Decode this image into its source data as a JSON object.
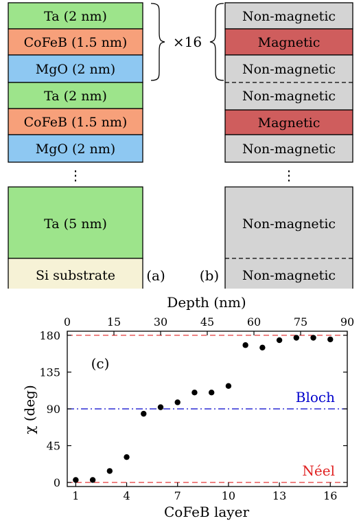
{
  "stack_a": {
    "layers_top": [
      "Ta (2 nm)",
      "CoFeB (1.5 nm)",
      "MgO (2 nm)",
      "Ta (2 nm)",
      "CoFeB (1.5 nm)",
      "MgO (2 nm)"
    ],
    "bottom_ta": "Ta (5 nm)",
    "substrate": "Si substrate",
    "panel_label": "(a)",
    "colors": {
      "ta": "#9de48b",
      "cofeb": "#f7a07a",
      "mgo": "#8ec8f2",
      "substrate": "#f6f2d6"
    }
  },
  "repeat_label": "×16",
  "ellipsis": "⋮",
  "stack_b": {
    "layers_top": [
      "Non-magnetic",
      "Magnetic",
      "Non-magnetic",
      "Non-magnetic",
      "Magnetic",
      "Non-magnetic"
    ],
    "bottom_big": "Non-magnetic",
    "bottom_small": "Non-magnetic",
    "panel_label": "(b)",
    "colors": {
      "nonmagnetic": "#d4d4d4",
      "magnetic": "#cf5d5d"
    }
  },
  "chart_data": {
    "type": "scatter",
    "panel_label": "(c)",
    "xlabel": "CoFeB layer",
    "ylabel": "χ (deg)",
    "top_xlabel": "Depth (nm)",
    "x": [
      1,
      2,
      3,
      4,
      5,
      6,
      7,
      8,
      9,
      10,
      11,
      12,
      13,
      14,
      15,
      16
    ],
    "y": [
      3,
      3,
      14,
      31,
      84,
      92,
      98,
      110,
      110,
      118,
      168,
      165,
      174,
      177,
      177,
      175
    ],
    "xlim": [
      0.5,
      17
    ],
    "ylim": [
      -5,
      185
    ],
    "xticks": [
      "1",
      "4",
      "7",
      "10",
      "13",
      "16"
    ],
    "yticks": [
      "0",
      "45",
      "90",
      "135",
      "180"
    ],
    "top_xticks": [
      "0",
      "15",
      "30",
      "45",
      "60",
      "75",
      "90"
    ],
    "reference_lines": [
      {
        "label": "Bloch",
        "y": 90,
        "color": "#0000cc",
        "style": "dash-dot"
      },
      {
        "label": "Néel",
        "y": 0,
        "color": "#e02020",
        "style": "dashed"
      },
      {
        "label": "",
        "y": 180,
        "color": "#e02020",
        "style": "dashed"
      }
    ],
    "grid": false
  }
}
